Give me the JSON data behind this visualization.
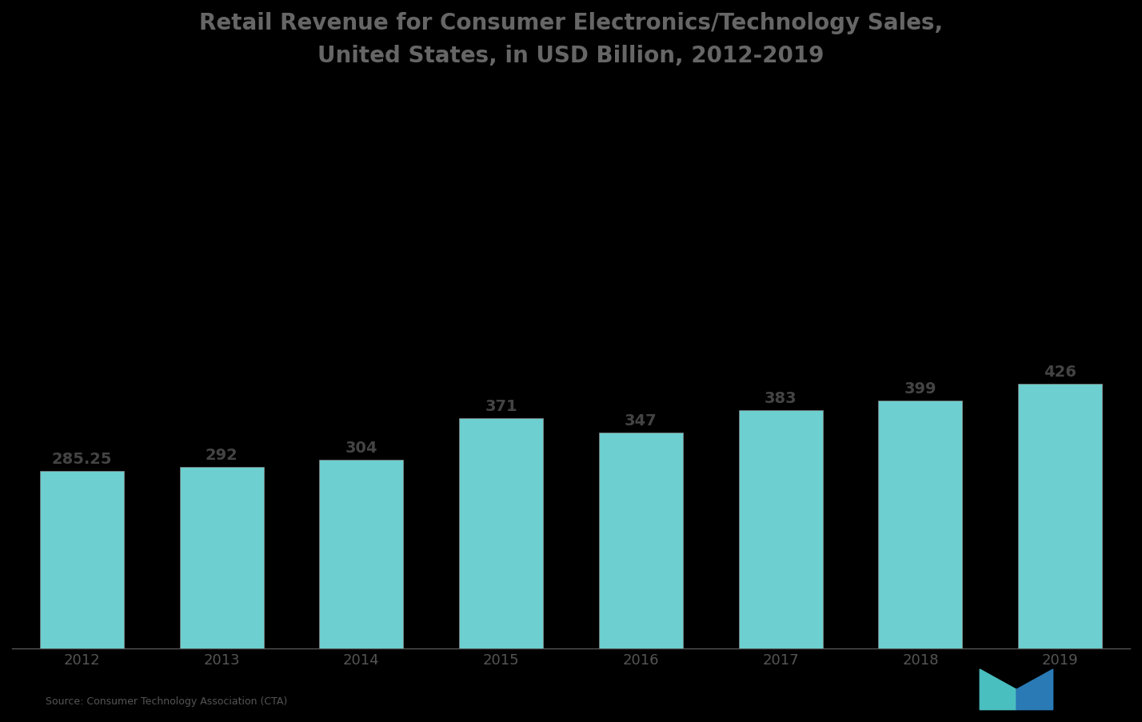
{
  "title_line1": "Retail Revenue for Consumer Electronics/Technology Sales,",
  "title_line2": "United States, in USD Billion, 2012-2019",
  "years": [
    "2012",
    "2013",
    "2014",
    "2015",
    "2016",
    "2017",
    "2018",
    "2019"
  ],
  "values": [
    285.25,
    292,
    304,
    371,
    347,
    383,
    399,
    426
  ],
  "bar_color": "#6DCFCF",
  "bar_edge_color": "#888888",
  "background_color": "#000000",
  "text_color": "#444444",
  "title_color": "#666666",
  "label_fontsize": 14,
  "title_fontsize": 20,
  "source_text": "Source: Consumer Technology Association (CTA)",
  "ylim": [
    0,
    900
  ],
  "bar_width": 0.6
}
